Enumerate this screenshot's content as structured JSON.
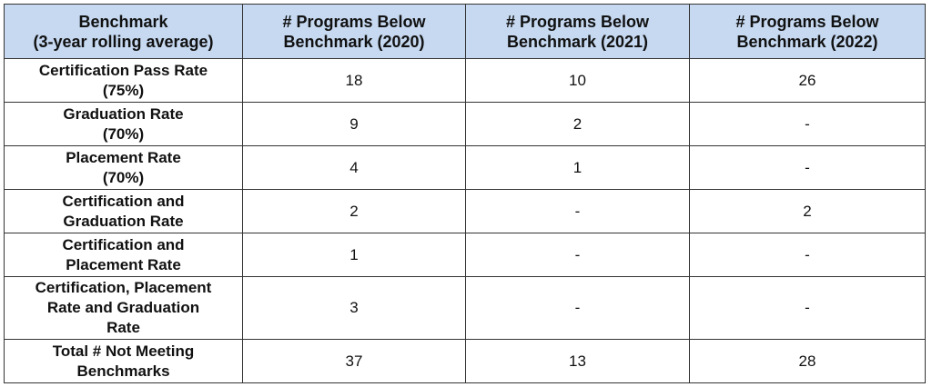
{
  "table": {
    "headers": [
      {
        "line1": "Benchmark",
        "line2": "(3-year rolling average)"
      },
      {
        "line1": "# Programs Below",
        "line2": "Benchmark (2020)"
      },
      {
        "line1": "# Programs Below",
        "line2": "Benchmark (2021)"
      },
      {
        "line1": "# Programs Below",
        "line2": "Benchmark (2022)"
      }
    ],
    "rows": [
      {
        "benchmark": [
          "Certification Pass Rate",
          "(75%)"
        ],
        "y2020": "18",
        "y2021": "10",
        "y2022": "26"
      },
      {
        "benchmark": [
          "Graduation Rate",
          "(70%)"
        ],
        "y2020": "9",
        "y2021": "2",
        "y2022": "-"
      },
      {
        "benchmark": [
          "Placement Rate",
          "(70%)"
        ],
        "y2020": "4",
        "y2021": "1",
        "y2022": "-"
      },
      {
        "benchmark": [
          "Certification and",
          "Graduation Rate"
        ],
        "y2020": "2",
        "y2021": "-",
        "y2022": "2"
      },
      {
        "benchmark": [
          "Certification and",
          "Placement Rate"
        ],
        "y2020": "1",
        "y2021": "-",
        "y2022": "-"
      },
      {
        "benchmark": [
          "Certification, Placement",
          "Rate and Graduation",
          "Rate"
        ],
        "y2020": "3",
        "y2021": "-",
        "y2022": "-"
      },
      {
        "benchmark": [
          "Total # Not Meeting",
          "Benchmarks"
        ],
        "y2020": "37",
        "y2021": "13",
        "y2022": "28"
      }
    ]
  },
  "colors": {
    "header_background": "#c6d9f1",
    "border": "#333333"
  }
}
